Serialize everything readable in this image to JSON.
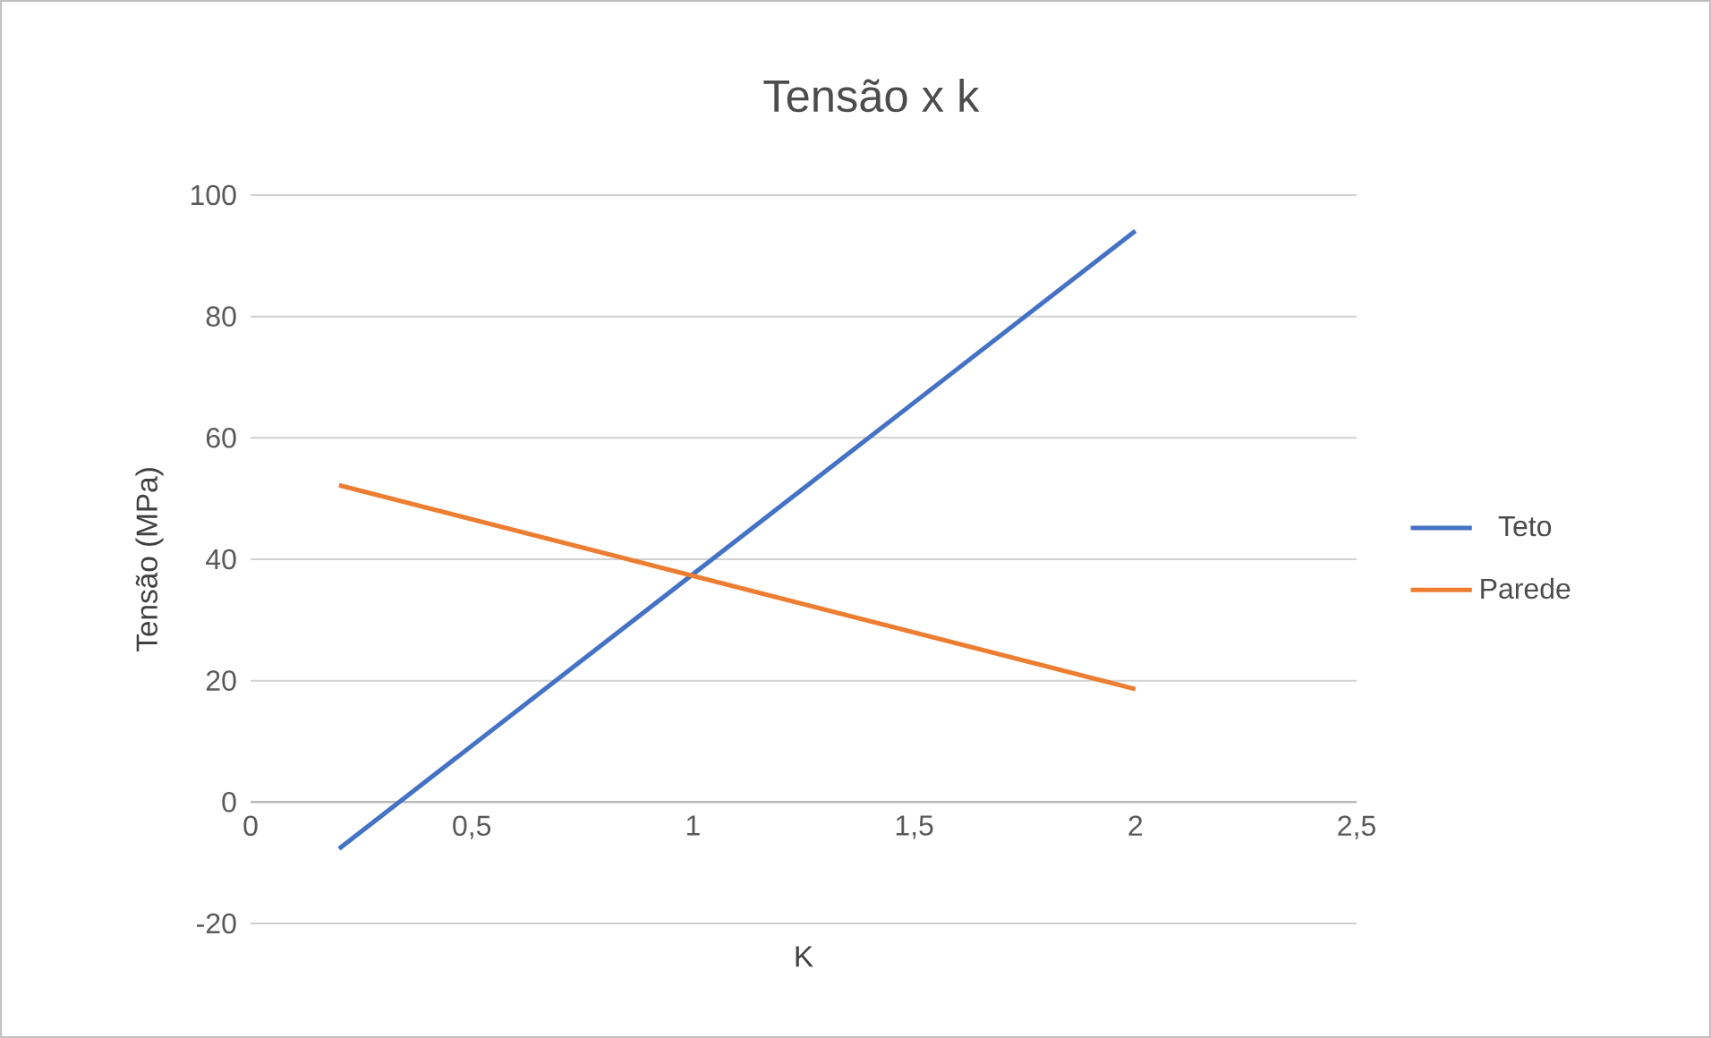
{
  "chart_data": {
    "type": "line",
    "title": "Tensão x k",
    "xlabel": "K",
    "ylabel": "Tensão (MPa)",
    "series": [
      {
        "name": "Teto",
        "color": "#4472c4",
        "values": [
          -7.7,
          94.1
        ]
      },
      {
        "name": "Parede",
        "color": "#ed7d31",
        "values": [
          52.2,
          18.6
        ]
      }
    ],
    "x": [
      0.2,
      2
    ],
    "xlim": [
      0,
      2.5
    ],
    "ylim": [
      -20,
      100
    ],
    "xticks": [
      0,
      {
        "value": 0.5,
        "label": "0,5"
      },
      1,
      {
        "value": 1.5,
        "label": "1,5"
      },
      2,
      {
        "value": 2.5,
        "label": "2,5"
      }
    ],
    "yticks": [
      -20,
      0,
      20,
      40,
      60,
      80,
      100
    ],
    "grid": "y",
    "legend": "right",
    "marker": "none",
    "line_style": "solid"
  }
}
